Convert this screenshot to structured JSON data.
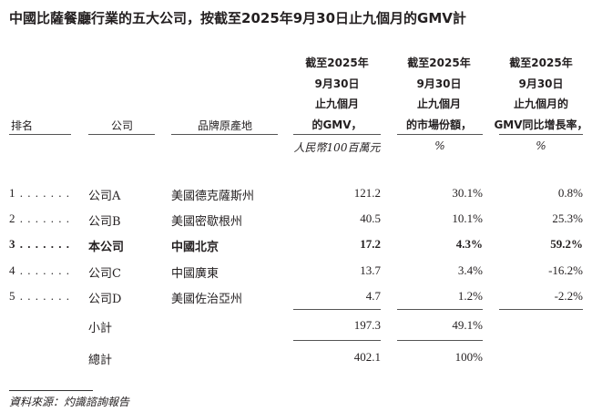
{
  "title": "中國比薩餐廳行業的五大公司，按截至2025年9月30日止九個月的GMV計",
  "headers": {
    "rank": "排名",
    "company": "公司",
    "brand_origin": "品牌原產地",
    "gmv": [
      "截至2025年",
      "9月30日",
      "止九個月",
      "的GMV，"
    ],
    "share": [
      "截至2025年",
      "9月30日",
      "止九個月",
      "的市場份額，"
    ],
    "growth": [
      "截至2025年",
      "9月30日",
      "止九個月的",
      "GMV同比增長率，"
    ]
  },
  "units": {
    "gmv": "人民幣100百萬元",
    "share": "%",
    "growth": "%"
  },
  "rows": [
    {
      "rank": "1 . . . . . . .",
      "company": "公司A",
      "origin": "美國德克薩斯州",
      "gmv": "121.2",
      "share": "30.1%",
      "growth": "0.8%",
      "bold": false
    },
    {
      "rank": "2 . . . . . . .",
      "company": "公司B",
      "origin": "美國密歇根州",
      "gmv": "40.5",
      "share": "10.1%",
      "growth": "25.3%",
      "bold": false
    },
    {
      "rank": "3 . . . . . . .",
      "company": "本公司",
      "origin": "中國北京",
      "gmv": "17.2",
      "share": "4.3%",
      "growth": "59.2%",
      "bold": true
    },
    {
      "rank": "4 . . . . . . .",
      "company": "公司C",
      "origin": "中國廣東",
      "gmv": "13.7",
      "share": "3.4%",
      "growth": "-16.2%",
      "bold": false
    },
    {
      "rank": "5 . . . . . . .",
      "company": "公司D",
      "origin": "美國佐治亞州",
      "gmv": "4.7",
      "share": "1.2%",
      "growth": "-2.2%",
      "bold": false
    }
  ],
  "subtotal": {
    "label": "小計",
    "gmv": "197.3",
    "share": "49.1%"
  },
  "total": {
    "label": "總計",
    "gmv": "402.1",
    "share": "100%"
  },
  "source": "資料來源：灼識諮詢報告"
}
